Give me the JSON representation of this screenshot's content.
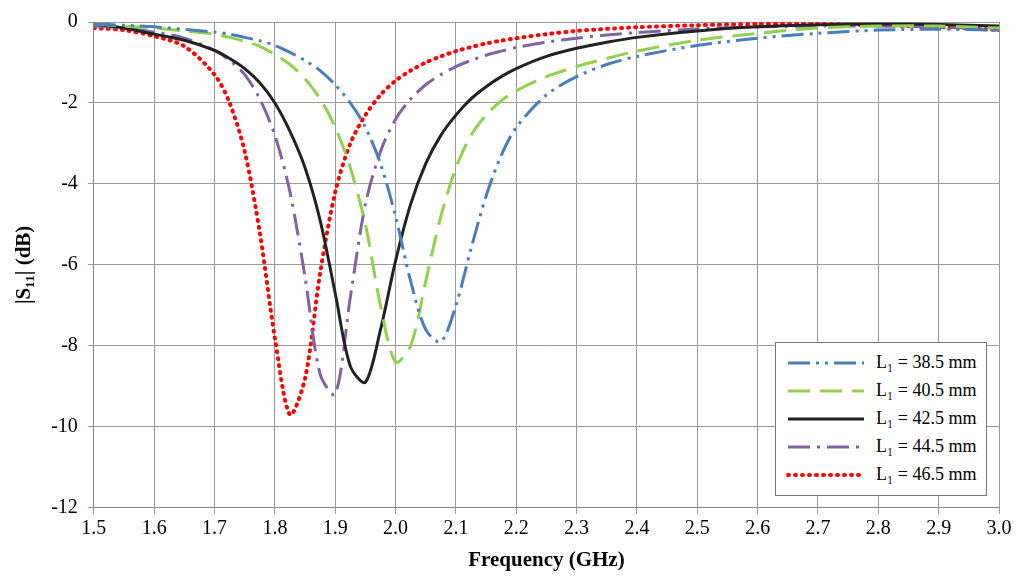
{
  "chart_data": {
    "type": "line",
    "x_label": "Frequency (GHz)",
    "y_label": "|S₁₁| (dB)",
    "xlim": [
      1.5,
      3.0
    ],
    "ylim": [
      -12,
      0
    ],
    "xticks": [
      1.5,
      1.6,
      1.7,
      1.8,
      1.9,
      {
        "value": 2,
        "label": "2.0"
      },
      2.1,
      2.2,
      2.3,
      2.4,
      2.5,
      2.6,
      2.7,
      2.8,
      2.9,
      {
        "value": 3,
        "label": "3.0"
      }
    ],
    "yticks": [
      0,
      -2,
      -4,
      -6,
      -8,
      -10,
      -12
    ],
    "grid": true,
    "legend": "lower right",
    "x": [
      1.5,
      1.55,
      1.6,
      1.65,
      1.7,
      1.725,
      1.75,
      1.775,
      1.8,
      1.825,
      1.85,
      1.875,
      1.9,
      1.925,
      1.95,
      1.975,
      2.0,
      2.025,
      2.05,
      2.075,
      2.1,
      2.125,
      2.15,
      2.175,
      2.2,
      2.25,
      2.3,
      2.35,
      2.4,
      2.5,
      2.6,
      2.7,
      2.8,
      2.9,
      3.0
    ],
    "series": [
      {
        "name": "L₁ = 38.5 mm",
        "color": "#4a7ebb",
        "line_style": "dash_dot_dot",
        "values": [
          -0.05,
          -0.08,
          -0.12,
          -0.18,
          -0.25,
          -0.3,
          -0.38,
          -0.46,
          -0.58,
          -0.75,
          -0.95,
          -1.2,
          -1.55,
          -2.0,
          -2.6,
          -3.5,
          -4.8,
          -6.4,
          -7.6,
          -7.9,
          -7.0,
          -5.6,
          -4.3,
          -3.3,
          -2.6,
          -1.8,
          -1.35,
          -1.05,
          -0.85,
          -0.58,
          -0.4,
          -0.28,
          -0.2,
          -0.18,
          -0.2
        ]
      },
      {
        "name": "L₁ = 40.5 mm",
        "color": "#92d050",
        "line_style": "dash",
        "values": [
          -0.05,
          -0.1,
          -0.15,
          -0.22,
          -0.3,
          -0.38,
          -0.48,
          -0.6,
          -0.8,
          -1.05,
          -1.4,
          -1.9,
          -2.6,
          -3.6,
          -5.0,
          -7.0,
          -8.4,
          -8.0,
          -6.4,
          -4.8,
          -3.6,
          -2.8,
          -2.3,
          -1.95,
          -1.7,
          -1.35,
          -1.1,
          -0.9,
          -0.72,
          -0.45,
          -0.28,
          -0.15,
          -0.1,
          -0.1,
          -0.15
        ]
      },
      {
        "name": "L₁ = 42.5 mm",
        "color": "#222222",
        "line_style": "solid",
        "values": [
          -0.05,
          -0.15,
          -0.3,
          -0.45,
          -0.7,
          -0.9,
          -1.15,
          -1.5,
          -2.0,
          -2.7,
          -3.6,
          -4.9,
          -6.7,
          -8.5,
          -8.9,
          -7.6,
          -5.9,
          -4.5,
          -3.5,
          -2.8,
          -2.3,
          -1.9,
          -1.6,
          -1.35,
          -1.15,
          -0.85,
          -0.65,
          -0.5,
          -0.38,
          -0.22,
          -0.12,
          -0.07,
          -0.05,
          -0.06,
          -0.1
        ]
      },
      {
        "name": "L₁ = 44.5 mm",
        "color": "#8064a2",
        "line_style": "dash_dot",
        "values": [
          -0.1,
          -0.15,
          -0.25,
          -0.4,
          -0.7,
          -0.95,
          -1.3,
          -1.9,
          -2.8,
          -4.2,
          -6.3,
          -8.7,
          -9.2,
          -6.8,
          -4.5,
          -3.2,
          -2.4,
          -1.9,
          -1.55,
          -1.3,
          -1.1,
          -0.95,
          -0.82,
          -0.72,
          -0.63,
          -0.5,
          -0.4,
          -0.32,
          -0.26,
          -0.17,
          -0.12,
          -0.1,
          -0.1,
          -0.12,
          -0.2
        ]
      },
      {
        "name": "L₁ = 46.5 mm",
        "color": "#ff0000",
        "line_style": "dot",
        "values": [
          -0.15,
          -0.2,
          -0.35,
          -0.6,
          -1.3,
          -2.0,
          -3.2,
          -5.2,
          -7.8,
          -9.7,
          -8.8,
          -6.2,
          -4.2,
          -3.0,
          -2.3,
          -1.8,
          -1.45,
          -1.2,
          -1.0,
          -0.85,
          -0.72,
          -0.62,
          -0.53,
          -0.46,
          -0.4,
          -0.3,
          -0.22,
          -0.17,
          -0.13,
          -0.08,
          -0.05,
          -0.05,
          -0.08,
          -0.12,
          -0.2
        ]
      }
    ]
  }
}
